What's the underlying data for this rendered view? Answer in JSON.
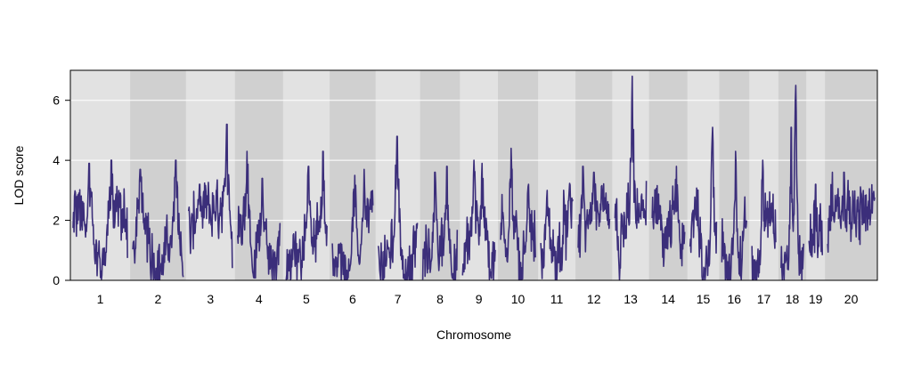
{
  "chart_data": {
    "type": "line",
    "title": "",
    "xlabel": "Chromosome",
    "ylabel": "LOD score",
    "ylim": [
      0,
      7
    ],
    "yticks": [
      0,
      2,
      4,
      6
    ],
    "grid": true,
    "legend": "none",
    "colors": {
      "line": "#3B2E7A",
      "band_light": "#E2E2E2",
      "band_dark": "#D0D0D0",
      "gridline": "#FFFFFF",
      "frame": "#000000"
    },
    "chromosomes": [
      "1",
      "2",
      "3",
      "4",
      "5",
      "6",
      "7",
      "8",
      "9",
      "10",
      "11",
      "12",
      "13",
      "14",
      "15",
      "16",
      "17",
      "18",
      "19",
      "20"
    ],
    "chromosome_lengths": [
      195,
      182,
      160,
      157,
      152,
      150,
      145,
      130,
      124,
      131,
      122,
      120,
      120,
      125,
      104,
      98,
      95,
      91,
      61,
      171
    ],
    "series": [
      {
        "peaks": [
          {
            "chr": "1",
            "pos": 0.3,
            "lod": 3.9
          },
          {
            "chr": "1",
            "pos": 0.7,
            "lod": 4.0
          },
          {
            "chr": "2",
            "pos": 0.15,
            "lod": 3.7
          },
          {
            "chr": "2",
            "pos": 0.85,
            "lod": 4.0
          },
          {
            "chr": "3",
            "pos": 0.25,
            "lod": 3.2
          },
          {
            "chr": "3",
            "pos": 0.88,
            "lod": 5.2
          },
          {
            "chr": "4",
            "pos": 0.22,
            "lod": 4.3
          },
          {
            "chr": "4",
            "pos": 0.58,
            "lod": 3.4
          },
          {
            "chr": "5",
            "pos": 0.55,
            "lod": 3.8
          },
          {
            "chr": "5",
            "pos": 0.9,
            "lod": 4.3
          },
          {
            "chr": "6",
            "pos": 0.55,
            "lod": 3.5
          },
          {
            "chr": "6",
            "pos": 0.78,
            "lod": 3.7
          },
          {
            "chr": "7",
            "pos": 0.48,
            "lod": 4.8
          },
          {
            "chr": "8",
            "pos": 0.35,
            "lod": 3.6
          },
          {
            "chr": "8",
            "pos": 0.7,
            "lod": 3.8
          },
          {
            "chr": "9",
            "pos": 0.35,
            "lod": 4.0
          },
          {
            "chr": "9",
            "pos": 0.6,
            "lod": 3.9
          },
          {
            "chr": "10",
            "pos": 0.3,
            "lod": 4.4
          },
          {
            "chr": "10",
            "pos": 0.8,
            "lod": 3.2
          },
          {
            "chr": "11",
            "pos": 0.2,
            "lod": 3.0
          },
          {
            "chr": "12",
            "pos": 0.15,
            "lod": 3.8
          },
          {
            "chr": "12",
            "pos": 0.5,
            "lod": 3.6
          },
          {
            "chr": "13",
            "pos": 0.55,
            "lod": 6.8
          },
          {
            "chr": "14",
            "pos": 0.75,
            "lod": 3.8
          },
          {
            "chr": "15",
            "pos": 0.85,
            "lod": 5.1
          },
          {
            "chr": "16",
            "pos": 0.55,
            "lod": 4.3
          },
          {
            "chr": "17",
            "pos": 0.45,
            "lod": 4.0
          },
          {
            "chr": "18",
            "pos": 0.45,
            "lod": 5.1
          },
          {
            "chr": "18",
            "pos": 0.65,
            "lod": 6.5
          },
          {
            "chr": "19",
            "pos": 0.5,
            "lod": 3.2
          },
          {
            "chr": "20",
            "pos": 0.1,
            "lod": 3.6
          },
          {
            "chr": "20",
            "pos": 0.35,
            "lod": 3.6
          }
        ],
        "baseline_range": [
          0.2,
          2.5
        ]
      }
    ]
  }
}
